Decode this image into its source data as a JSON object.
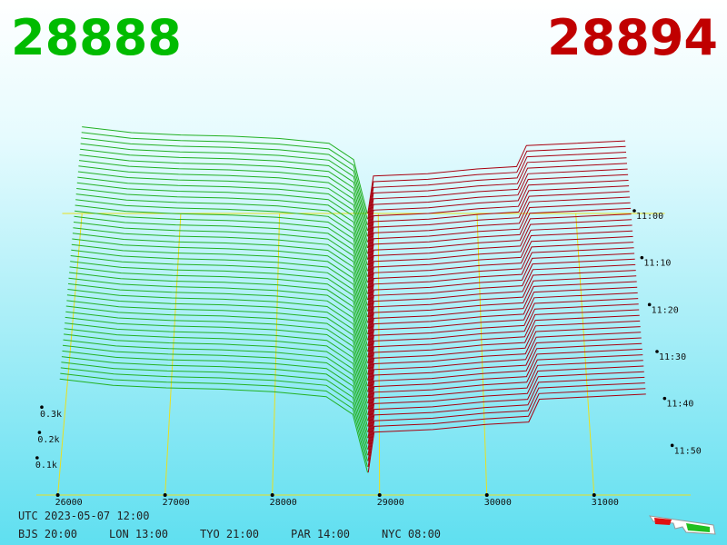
{
  "chart_data": {
    "type": "depth3d",
    "bid": 28888,
    "bid_color": "#00bb00",
    "ask": 28894,
    "ask_color": "#c00000",
    "series": [
      {
        "color": "#22b022",
        "x": [
          26000,
          26500,
          27000,
          27500,
          28000,
          28500,
          28750,
          28888
        ],
        "values": [
          370,
          345,
          335,
          330,
          320,
          300,
          230,
          0
        ]
      },
      {
        "color": "#a80010",
        "x": [
          28894,
          28950,
          29500,
          30000,
          30400,
          30500,
          31000,
          31500
        ],
        "values": [
          0,
          160,
          170,
          190,
          200,
          290,
          300,
          310
        ]
      }
    ],
    "xlim": [
      25800,
      31900
    ],
    "xticks": [
      26000,
      27000,
      28000,
      29000,
      30000,
      31000
    ],
    "ylim": [
      0,
      400
    ],
    "yticks": [
      {
        "value": 100,
        "label": "0.1k"
      },
      {
        "value": 200,
        "label": "0.2k"
      },
      {
        "value": 300,
        "label": "0.3k"
      }
    ],
    "times": [
      "11:00",
      "11:10",
      "11:20",
      "11:30",
      "11:40",
      "11:50"
    ],
    "grid": true,
    "grid_color": "#e8e020"
  },
  "footer": {
    "utc": "UTC 2023-05-07 12:00",
    "cities": [
      "BJS 20:00",
      "LON 13:00",
      "TYO 21:00",
      "PAR 14:00",
      "NYC 08:00"
    ]
  }
}
